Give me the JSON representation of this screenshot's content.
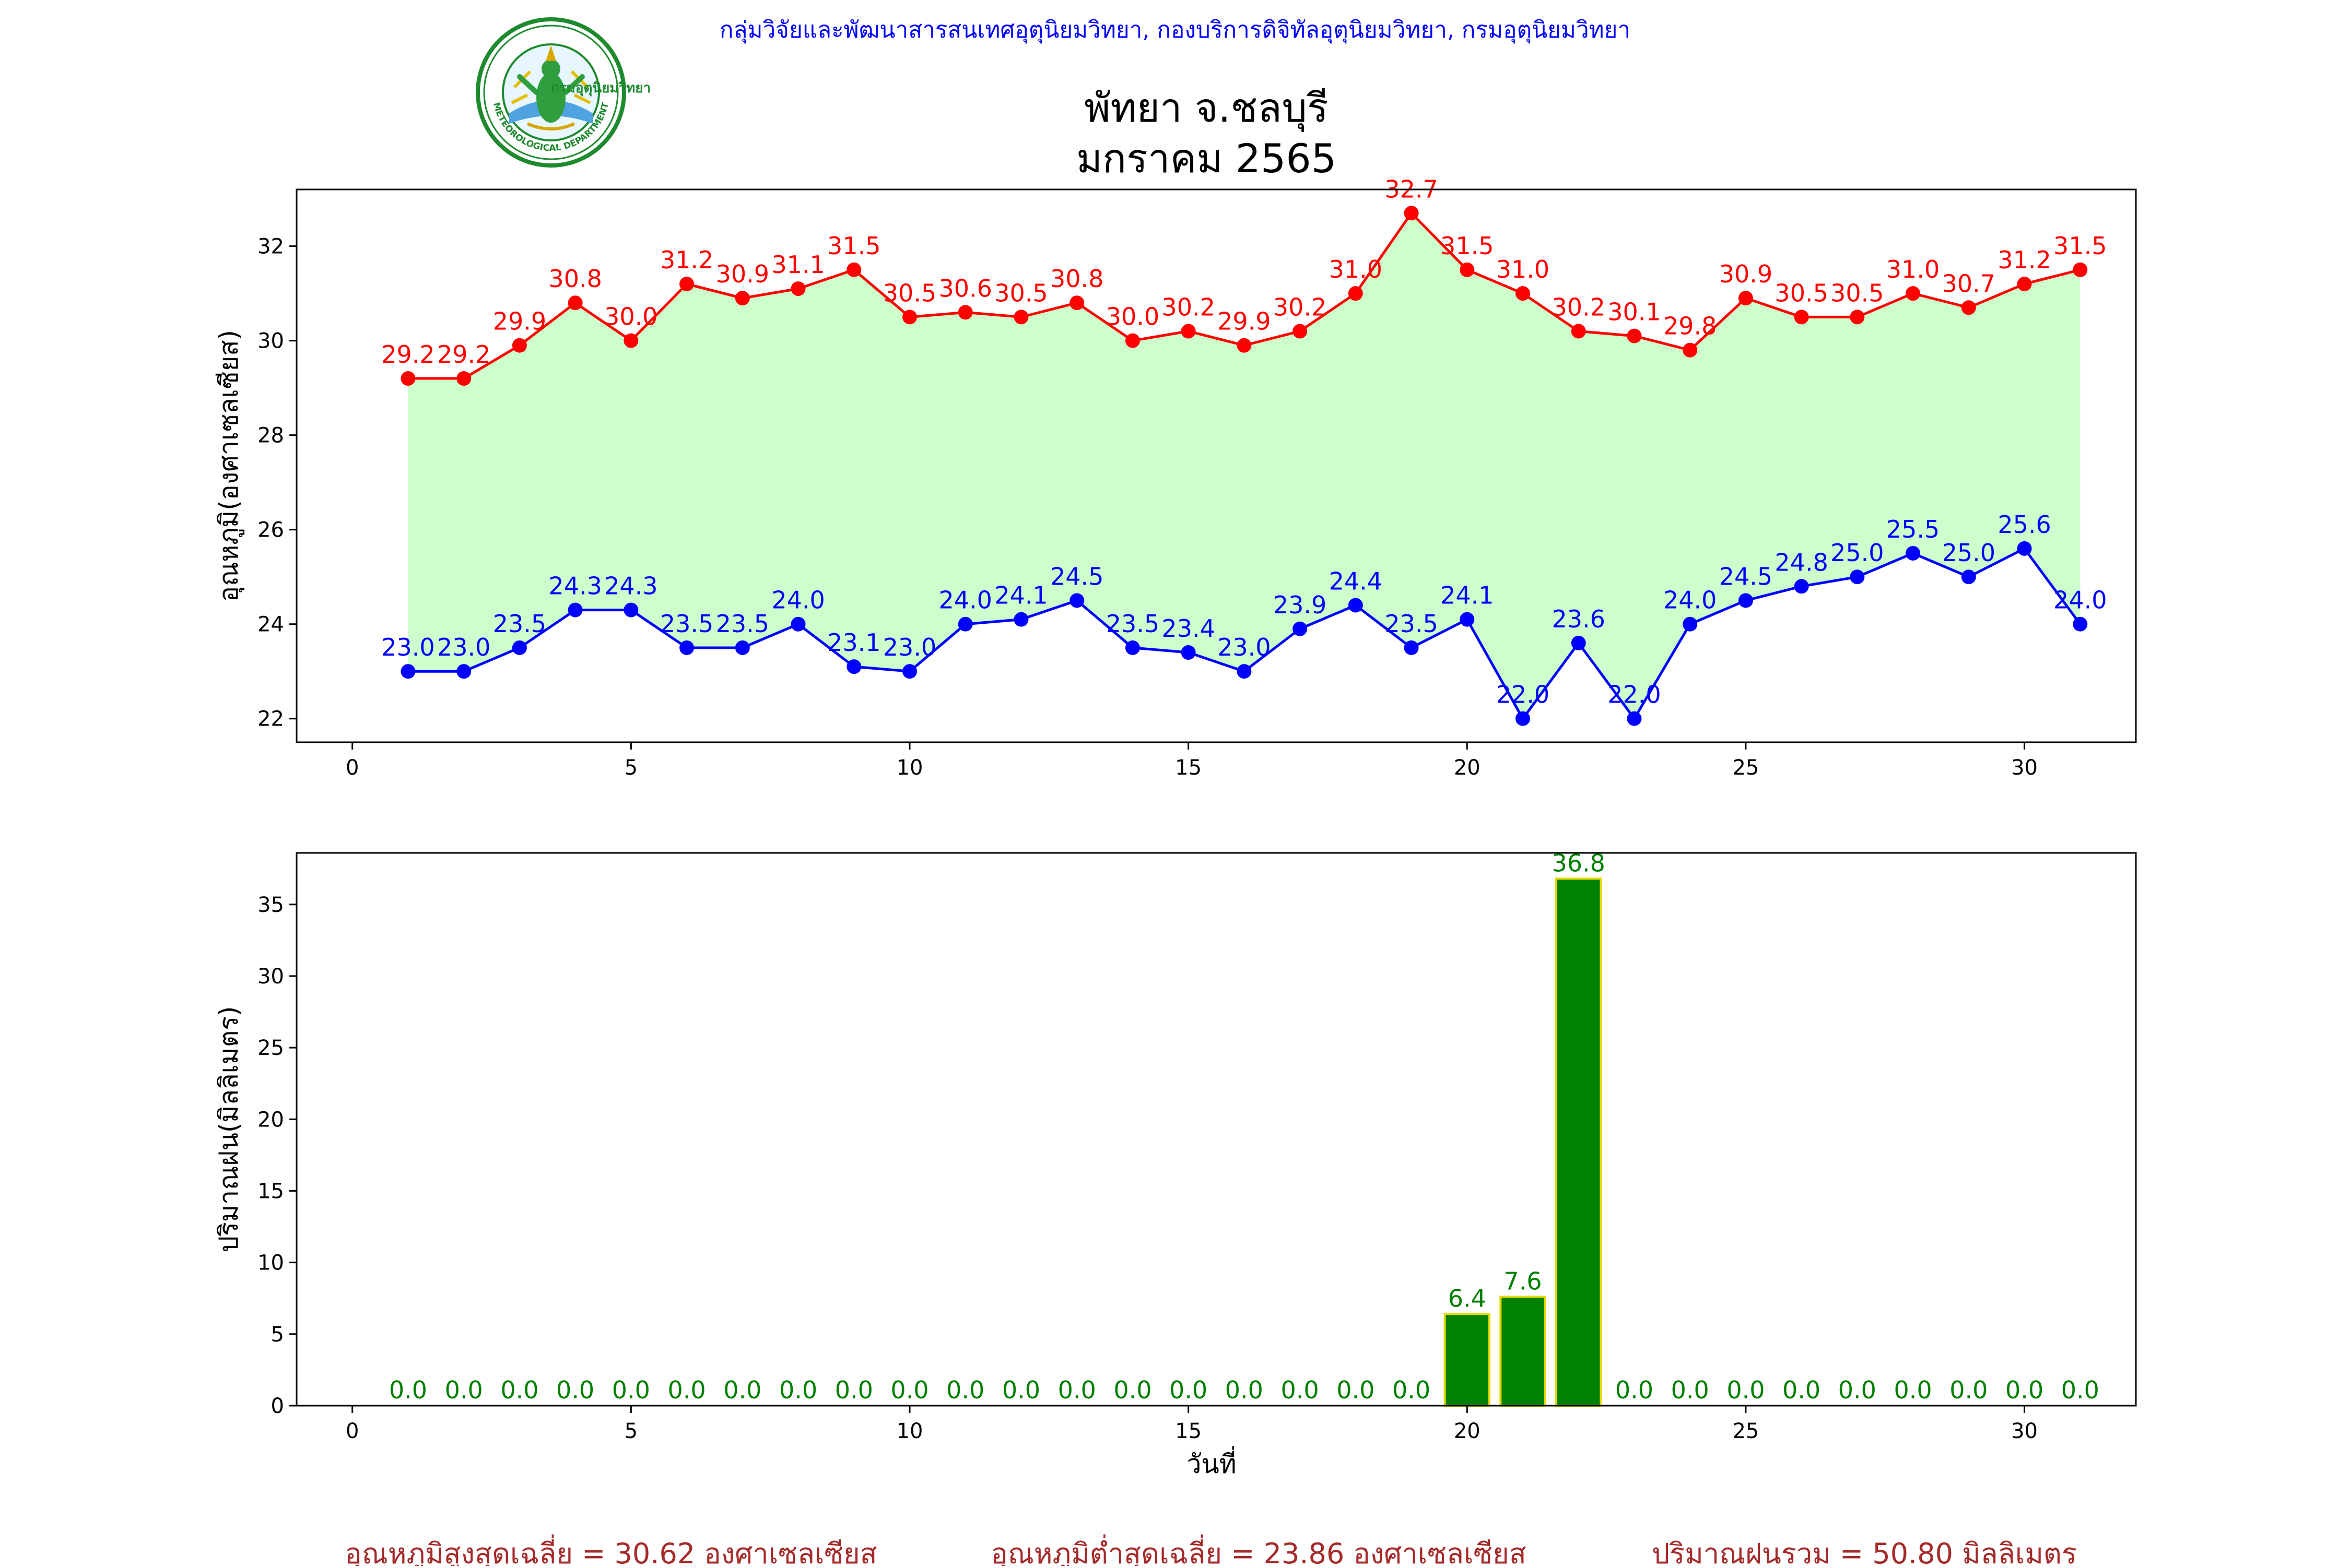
{
  "header": {
    "agency": "กลุ่มวิจัยและพัฒนาสารสนเทศอุตุนิยมวิทยา, กองบริการดิจิทัลอุตุนิยมวิทยา, กรมอุตุนิยมวิทยา",
    "title_line1": "พัทยา จ.ชลบุรี",
    "title_line2": "มกราคม 2565",
    "logo_text_top": "กรมอุตุนิยมวิทยา",
    "logo_text_bottom": "METEOROLOGICAL DEPARTMENT"
  },
  "colors": {
    "max": "#ff0000",
    "min": "#0000ff",
    "fill": "#ccffcc",
    "bar": "#008000",
    "bar_edge": "#e6d800",
    "agency": "#0000ff",
    "summary": "#a52a2a",
    "rain_label": "#008000"
  },
  "chart_data": [
    {
      "type": "line",
      "ylabel": "อุณหภูมิ(องศาเซลเซียส)",
      "xlabel": "",
      "xlim": [
        -1,
        32
      ],
      "ylim": [
        21.5,
        33.2
      ],
      "xticks": [
        0,
        5,
        10,
        15,
        20,
        25,
        30
      ],
      "yticks": [
        22,
        24,
        26,
        28,
        30,
        32
      ],
      "x": [
        1,
        2,
        3,
        4,
        5,
        6,
        7,
        8,
        9,
        10,
        11,
        12,
        13,
        14,
        15,
        16,
        17,
        18,
        19,
        20,
        21,
        22,
        23,
        24,
        25,
        26,
        27,
        28,
        29,
        30,
        31
      ],
      "series": [
        {
          "key": "max",
          "values": [
            29.2,
            29.2,
            29.9,
            30.8,
            30.0,
            31.2,
            30.9,
            31.1,
            31.5,
            30.5,
            30.6,
            30.5,
            30.8,
            30.0,
            30.2,
            29.9,
            30.2,
            31.0,
            32.7,
            31.5,
            31.0,
            30.2,
            30.1,
            29.8,
            30.9,
            30.5,
            30.5,
            31.0,
            30.7,
            31.2,
            31.5
          ],
          "labels": [
            "29.2",
            "29.2",
            "29.9",
            "30.8",
            "30.0",
            "31.2",
            "30.9",
            "31.1",
            "31.5",
            "30.5",
            "30.6",
            "30.5",
            "30.8",
            "30.0",
            "30.2",
            "29.9",
            "30.2",
            "31.0",
            "32.7",
            "31.5",
            "31.0",
            "30.2",
            "30.1",
            "29.8",
            "30.9",
            "30.5",
            "30.5",
            "31.0",
            "30.7",
            "31.2",
            "31.5"
          ]
        },
        {
          "key": "min",
          "values": [
            23.0,
            23.0,
            23.5,
            24.3,
            24.3,
            23.5,
            23.5,
            24.0,
            23.1,
            23.0,
            24.0,
            24.1,
            24.5,
            23.5,
            23.4,
            23.0,
            23.9,
            24.4,
            23.5,
            24.1,
            22.0,
            23.6,
            22.0,
            24.0,
            24.5,
            24.8,
            25.0,
            25.5,
            25.0,
            25.6,
            24.0
          ],
          "labels": [
            "23.0",
            "23.0",
            "23.5",
            "24.3",
            "24.3",
            "23.5",
            "23.5",
            "24.0",
            "23.1",
            "23.0",
            "24.0",
            "24.1",
            "24.5",
            "23.5",
            "23.4",
            "23.0",
            "23.9",
            "24.4",
            "23.5",
            "24.1",
            "22.0",
            "23.6",
            "22.0",
            "24.0",
            "24.5",
            "24.8",
            "25.0",
            "25.5",
            "25.0",
            "25.6",
            "24.0"
          ]
        }
      ],
      "grid": false
    },
    {
      "type": "bar",
      "ylabel": "ปริมาณฝน(มิลลิเมตร)",
      "xlabel": "วันที่",
      "xlim": [
        -1,
        32
      ],
      "ylim": [
        0,
        38.6
      ],
      "xticks": [
        0,
        5,
        10,
        15,
        20,
        25,
        30
      ],
      "yticks": [
        0,
        5,
        10,
        15,
        20,
        25,
        30,
        35
      ],
      "x": [
        1,
        2,
        3,
        4,
        5,
        6,
        7,
        8,
        9,
        10,
        11,
        12,
        13,
        14,
        15,
        16,
        17,
        18,
        19,
        20,
        21,
        22,
        23,
        24,
        25,
        26,
        27,
        28,
        29,
        30,
        31
      ],
      "values": [
        0.0,
        0.0,
        0.0,
        0.0,
        0.0,
        0.0,
        0.0,
        0.0,
        0.0,
        0.0,
        0.0,
        0.0,
        0.0,
        0.0,
        0.0,
        0.0,
        0.0,
        0.0,
        0.0,
        6.4,
        7.6,
        36.8,
        0.0,
        0.0,
        0.0,
        0.0,
        0.0,
        0.0,
        0.0,
        0.0,
        0.0
      ],
      "labels": [
        "0.0",
        "0.0",
        "0.0",
        "0.0",
        "0.0",
        "0.0",
        "0.0",
        "0.0",
        "0.0",
        "0.0",
        "0.0",
        "0.0",
        "0.0",
        "0.0",
        "0.0",
        "0.0",
        "0.0",
        "0.0",
        "0.0",
        "6.4",
        "7.6",
        "36.8",
        "0.0",
        "0.0",
        "0.0",
        "0.0",
        "0.0",
        "0.0",
        "0.0",
        "0.0",
        "0.0"
      ],
      "grid": false
    }
  ],
  "summary": {
    "max_avg": "อุณหภูมิสูงสุดเฉลี่ย = 30.62 องศาเซลเซียส",
    "min_avg": "อุณหภูมิต่ำสุดเฉลี่ย = 23.86 องศาเซลเซียส",
    "rain_total": "ปริมาณฝนรวม = 50.80 มิลลิเมตร"
  }
}
